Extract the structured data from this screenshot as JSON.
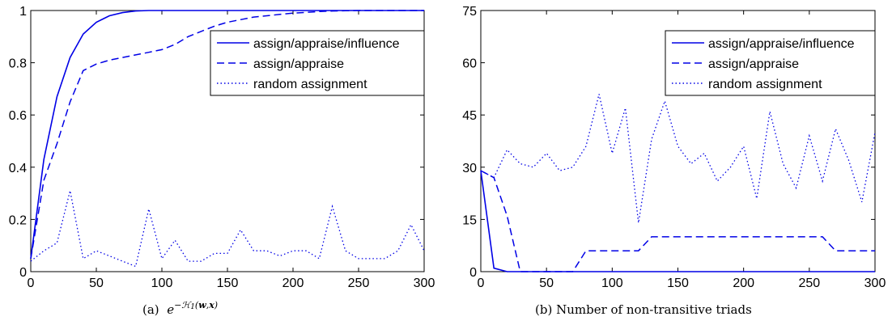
{
  "chart_data": [
    {
      "type": "line",
      "panel": "a",
      "caption_label": "(a)",
      "caption_formula": "e^{-H_1(w,x)}",
      "xlim": [
        0,
        300
      ],
      "ylim": [
        0,
        1
      ],
      "xticks": [
        0,
        50,
        100,
        150,
        200,
        250,
        300
      ],
      "yticks": [
        0,
        0.2,
        0.4,
        0.6,
        0.8,
        1
      ],
      "ytick_labels": [
        "0",
        "0.2",
        "0.4",
        "0.6",
        "0.8",
        "1"
      ],
      "legend_position": "top-right",
      "series_color": "#0000e6",
      "series": [
        {
          "name": "assign/appraise/influence",
          "style": "solid",
          "x": [
            0,
            10,
            20,
            30,
            40,
            50,
            60,
            70,
            80,
            90,
            100,
            110,
            120,
            130,
            140,
            150,
            160,
            170,
            180,
            190,
            200,
            210,
            220,
            230,
            240,
            250,
            260,
            270,
            280,
            290,
            300
          ],
          "y": [
            0.05,
            0.43,
            0.67,
            0.82,
            0.91,
            0.955,
            0.98,
            0.992,
            0.998,
            1,
            1,
            1,
            1,
            1,
            1,
            1,
            1,
            1,
            1,
            1,
            1,
            1,
            1,
            1,
            1,
            1,
            1,
            1,
            1,
            1,
            1
          ]
        },
        {
          "name": "assign/appraise",
          "style": "dashed",
          "x": [
            0,
            10,
            20,
            30,
            40,
            50,
            60,
            70,
            80,
            90,
            100,
            110,
            120,
            130,
            140,
            150,
            160,
            170,
            180,
            190,
            200,
            210,
            220,
            230,
            240,
            250,
            260,
            270,
            280,
            290,
            300
          ],
          "y": [
            0.05,
            0.35,
            0.49,
            0.65,
            0.77,
            0.795,
            0.81,
            0.82,
            0.83,
            0.84,
            0.85,
            0.87,
            0.9,
            0.92,
            0.94,
            0.955,
            0.965,
            0.975,
            0.98,
            0.985,
            0.99,
            0.993,
            0.996,
            0.998,
            0.999,
            1,
            1,
            1,
            1,
            1,
            1
          ]
        },
        {
          "name": "random assignment",
          "style": "dotted",
          "x": [
            0,
            10,
            20,
            30,
            40,
            50,
            60,
            70,
            80,
            90,
            100,
            110,
            120,
            130,
            140,
            150,
            160,
            170,
            180,
            190,
            200,
            210,
            220,
            230,
            240,
            250,
            260,
            270,
            280,
            290,
            300
          ],
          "y": [
            0.04,
            0.08,
            0.11,
            0.31,
            0.05,
            0.08,
            0.06,
            0.04,
            0.02,
            0.24,
            0.05,
            0.12,
            0.04,
            0.04,
            0.07,
            0.07,
            0.16,
            0.08,
            0.08,
            0.06,
            0.08,
            0.08,
            0.05,
            0.25,
            0.08,
            0.05,
            0.05,
            0.05,
            0.08,
            0.18,
            0.08
          ]
        }
      ]
    },
    {
      "type": "line",
      "panel": "b",
      "caption_label": "(b)",
      "caption_text": "Number of non-transitive triads",
      "xlim": [
        0,
        300
      ],
      "ylim": [
        0,
        75
      ],
      "xticks": [
        0,
        50,
        100,
        150,
        200,
        250,
        300
      ],
      "yticks": [
        0,
        15,
        30,
        45,
        60,
        75
      ],
      "ytick_labels": [
        "0",
        "15",
        "30",
        "45",
        "60",
        "75"
      ],
      "legend_position": "top-right",
      "series_color": "#0000e6",
      "series": [
        {
          "name": "assign/appraise/influence",
          "style": "solid",
          "x": [
            0,
            10,
            20,
            30,
            40,
            50,
            60,
            70,
            80,
            90,
            100,
            110,
            120,
            130,
            140,
            150,
            160,
            170,
            180,
            190,
            200,
            210,
            220,
            230,
            240,
            250,
            260,
            270,
            280,
            290,
            300
          ],
          "y": [
            29,
            1,
            0,
            0,
            0,
            0,
            0,
            0,
            0,
            0,
            0,
            0,
            0,
            0,
            0,
            0,
            0,
            0,
            0,
            0,
            0,
            0,
            0,
            0,
            0,
            0,
            0,
            0,
            0,
            0,
            0
          ]
        },
        {
          "name": "assign/appraise",
          "style": "dashed",
          "x": [
            0,
            10,
            20,
            30,
            40,
            50,
            60,
            70,
            80,
            90,
            100,
            110,
            120,
            130,
            140,
            150,
            160,
            170,
            180,
            190,
            200,
            210,
            220,
            230,
            240,
            250,
            260,
            270,
            280,
            290,
            300
          ],
          "y": [
            29,
            27,
            16,
            0,
            0,
            0,
            0,
            0,
            6,
            6,
            6,
            6,
            6,
            10,
            10,
            10,
            10,
            10,
            10,
            10,
            10,
            10,
            10,
            10,
            10,
            10,
            10,
            6,
            6,
            6,
            6
          ]
        },
        {
          "name": "random assignment",
          "style": "dotted",
          "x": [
            0,
            10,
            20,
            30,
            40,
            50,
            60,
            70,
            80,
            90,
            100,
            110,
            120,
            130,
            140,
            150,
            160,
            170,
            180,
            190,
            200,
            210,
            220,
            230,
            240,
            250,
            260,
            270,
            280,
            290,
            300
          ],
          "y": [
            29,
            27,
            35,
            31,
            30,
            34,
            29,
            30,
            36,
            51,
            34,
            47,
            14,
            38,
            49,
            36,
            31,
            34,
            26,
            30,
            36,
            21,
            46,
            31,
            24,
            39,
            26,
            41,
            32,
            20,
            40
          ]
        }
      ]
    }
  ]
}
